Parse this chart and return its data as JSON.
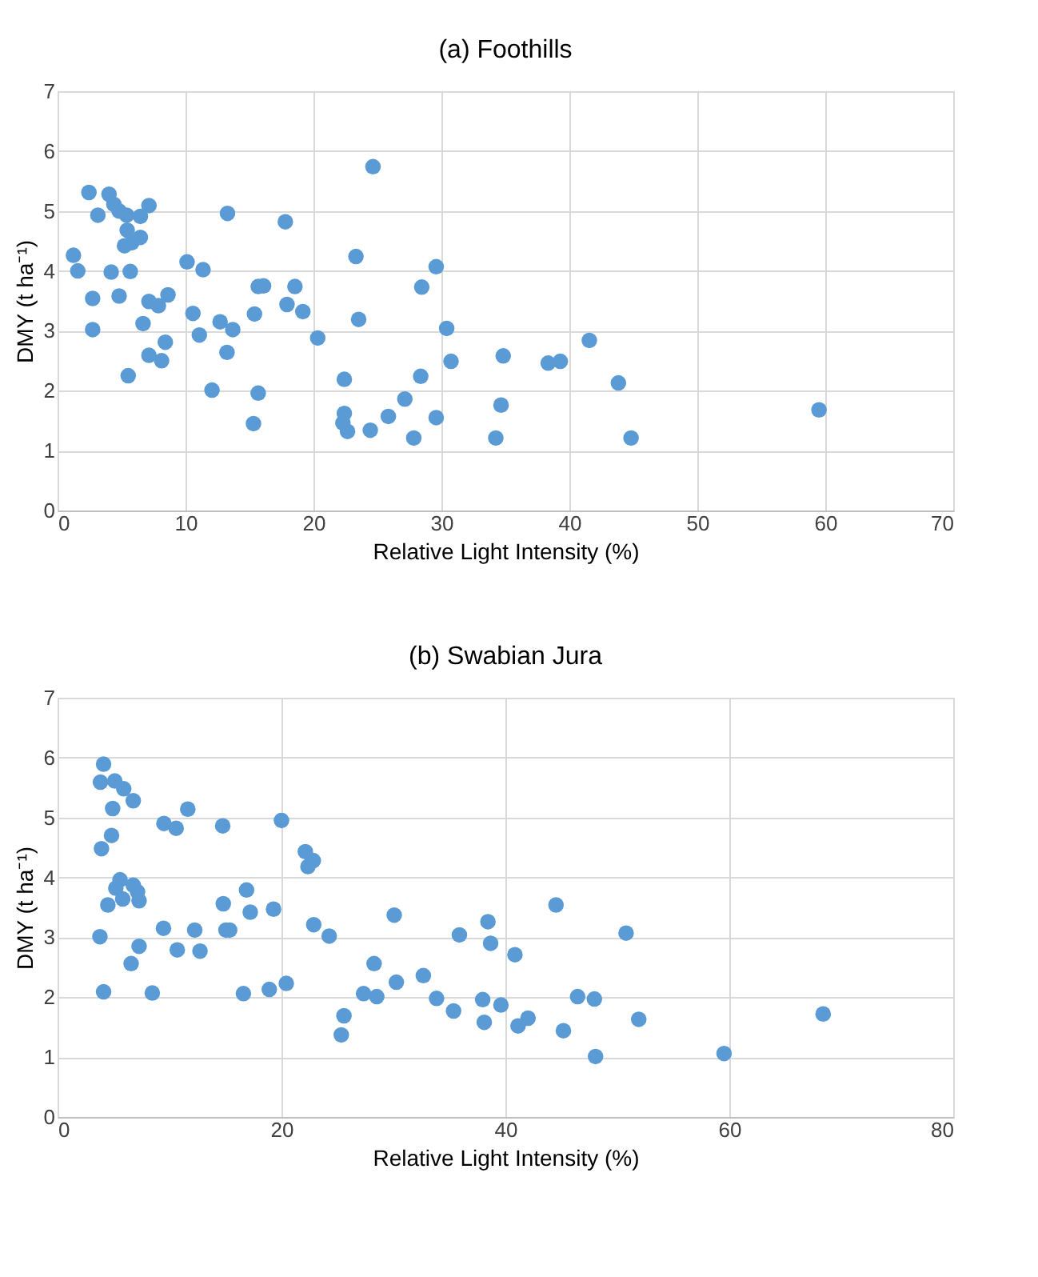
{
  "chart_data": [
    {
      "type": "scatter",
      "title": "(a) Foothills",
      "xlabel": "Relative Light Intensity (%)",
      "ylabel": "DMY (t ha⁻¹)",
      "xlim": [
        0,
        70
      ],
      "xticks": [
        0,
        10,
        20,
        30,
        40,
        50,
        60,
        70
      ],
      "ylim": [
        0,
        7
      ],
      "yticks": [
        0,
        1,
        2,
        3,
        4,
        5,
        6,
        7
      ],
      "grid": true,
      "marker": "circle",
      "series": [
        {
          "color": "#5b9bd5",
          "x": [
            2.45,
            4.02,
            3.15,
            4.4,
            4.8,
            5.4,
            6.47,
            7.14,
            5.44,
            5.23,
            5.8,
            6.47,
            1.24,
            1.58,
            4.19,
            5.68,
            2.74,
            4.81,
            7.14,
            7.88,
            8.63,
            2.74,
            6.68,
            8.42,
            7.14,
            8.13,
            5.52,
            10.12,
            11.37,
            10.58,
            11.08,
            12.7,
            13.69,
            13.24,
            12.07,
            13.28,
            15.39,
            15.68,
            16.1,
            15.68,
            15.31,
            17.8,
            17.93,
            18.55,
            19.17,
            20.33,
            24.65,
            23.32,
            23.53,
            22.41,
            22.41,
            22.3,
            22.66,
            24.44,
            25.85,
            27.14,
            27.84,
            28.38,
            28.46,
            29.59,
            29.59,
            30.41,
            30.75,
            34.83,
            34.66,
            34.25,
            38.34,
            39.29,
            41.56,
            43.83,
            44.82,
            59.51
          ],
          "values": [
            5.31,
            5.28,
            4.93,
            5.11,
            5.0,
            4.93,
            4.91,
            5.09,
            4.68,
            4.42,
            4.47,
            4.56,
            4.26,
            4.0,
            3.98,
            3.99,
            3.54,
            3.58,
            3.49,
            3.42,
            3.6,
            3.02,
            3.12,
            2.81,
            2.59,
            2.5,
            2.25,
            4.15,
            4.02,
            3.29,
            2.93,
            3.15,
            3.02,
            2.64,
            2.01,
            4.96,
            3.28,
            3.74,
            3.75,
            1.96,
            1.45,
            4.82,
            3.44,
            3.74,
            3.32,
            2.88,
            5.74,
            4.24,
            3.19,
            2.19,
            1.62,
            1.46,
            1.32,
            1.34,
            1.57,
            1.86,
            1.21,
            2.24,
            3.73,
            4.07,
            1.55,
            3.04,
            2.49,
            2.58,
            1.76,
            1.21,
            2.46,
            2.49,
            2.84,
            2.13,
            1.21,
            1.68
          ]
        }
      ]
    },
    {
      "type": "scatter",
      "title": "(b) Swabian Jura",
      "xlabel": "Relative Light Intensity (%)",
      "ylabel": "DMY (t ha⁻¹)",
      "xlim": [
        0,
        80
      ],
      "xticks": [
        0,
        20,
        40,
        60,
        80
      ],
      "ylim": [
        0,
        7
      ],
      "yticks": [
        0,
        1,
        2,
        3,
        4,
        5,
        6,
        7
      ],
      "grid": true,
      "marker": "circle",
      "series": [
        {
          "color": "#5b9bd5",
          "x": [
            4.11,
            3.83,
            5.11,
            5.91,
            6.76,
            4.92,
            4.82,
            3.92,
            9.5,
            10.59,
            11.63,
            14.75,
            20.0,
            22.13,
            22.84,
            22.36,
            5.58,
            5.2,
            6.76,
            7.14,
            7.28,
            5.82,
            4.49,
            3.78,
            7.28,
            6.57,
            4.11,
            8.46,
            9.46,
            10.69,
            12.25,
            12.72,
            14.8,
            15.04,
            15.37,
            16.88,
            17.21,
            19.29,
            16.6,
            18.91,
            20.43,
            22.88,
            24.26,
            25.58,
            25.34,
            27.33,
            28.51,
            28.27,
            30.07,
            30.26,
            32.67,
            33.85,
            35.37,
            35.89,
            37.97,
            38.11,
            38.44,
            38.68,
            39.6,
            40.85,
            41.13,
            42.02,
            44.52,
            45.18,
            46.45,
            47.95,
            48.05,
            50.78,
            51.91,
            59.53,
            68.38
          ],
          "values": [
            5.89,
            5.59,
            5.61,
            5.48,
            5.28,
            5.15,
            4.7,
            4.48,
            4.9,
            4.82,
            5.14,
            4.86,
            4.95,
            4.43,
            4.28,
            4.18,
            3.96,
            3.82,
            3.87,
            3.76,
            3.61,
            3.64,
            3.54,
            3.01,
            2.85,
            2.56,
            2.09,
            2.07,
            3.15,
            2.79,
            3.12,
            2.77,
            3.56,
            3.12,
            3.12,
            3.79,
            3.42,
            3.47,
            2.06,
            2.13,
            2.23,
            3.21,
            3.02,
            1.69,
            1.37,
            2.06,
            2.01,
            2.56,
            3.37,
            2.25,
            2.36,
            1.98,
            1.77,
            3.04,
            1.96,
            1.58,
            3.26,
            2.9,
            1.87,
            2.71,
            1.52,
            1.65,
            3.54,
            1.44,
            2.01,
            1.97,
            1.01,
            3.07,
            1.63,
            1.06,
            1.72
          ]
        }
      ]
    }
  ]
}
